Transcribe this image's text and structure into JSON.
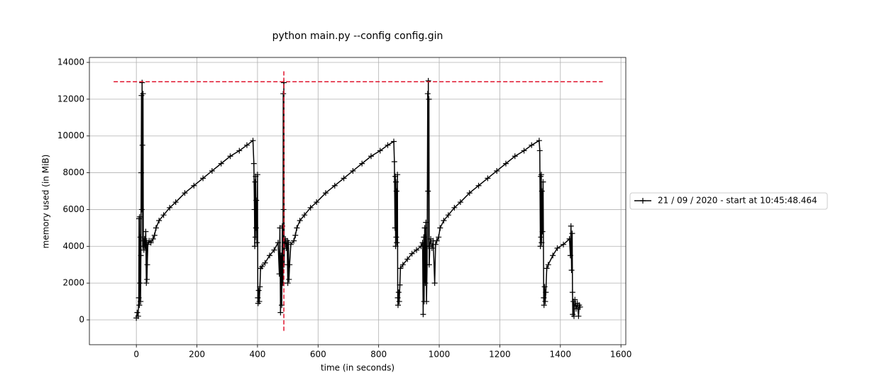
{
  "chart_data": {
    "type": "line",
    "title": "python main.py --config config.gin",
    "xlabel": "time (in seconds)",
    "ylabel": "memory used (in MiB)",
    "xlim": [
      -155,
      1616
    ],
    "ylim": [
      -1350,
      14270
    ],
    "xticks": [
      0,
      200,
      400,
      600,
      800,
      1000,
      1200,
      1400,
      1600
    ],
    "yticks": [
      0,
      2000,
      4000,
      6000,
      8000,
      10000,
      12000,
      14000
    ],
    "grid": true,
    "legend_position": "right",
    "x": [
      0,
      3,
      6,
      8,
      9,
      10,
      11,
      12,
      13,
      14,
      15,
      16,
      17,
      18,
      19,
      20,
      21,
      22,
      23,
      25,
      27,
      29,
      31,
      33,
      34,
      35,
      36,
      38,
      42,
      48,
      55,
      60,
      65,
      75,
      90,
      110,
      130,
      160,
      190,
      220,
      250,
      280,
      310,
      340,
      365,
      385,
      388,
      390,
      391,
      392,
      393,
      394,
      395,
      396,
      398,
      400,
      401,
      402,
      404,
      406,
      408,
      410,
      415,
      425,
      440,
      455,
      468,
      472,
      474,
      476,
      478,
      480,
      482,
      484,
      485,
      486,
      487,
      488,
      489,
      492,
      495,
      498,
      500,
      502,
      504,
      506,
      510,
      520,
      525,
      530,
      540,
      555,
      575,
      595,
      625,
      655,
      685,
      715,
      745,
      775,
      805,
      830,
      850,
      852,
      854,
      855,
      856,
      857,
      858,
      859,
      860,
      862,
      863,
      864,
      866,
      868,
      870,
      872,
      880,
      895,
      910,
      925,
      940,
      945,
      947,
      949,
      950,
      952,
      954,
      956,
      958,
      960,
      962,
      963,
      964,
      965,
      966,
      967,
      969,
      972,
      976,
      980,
      985,
      988,
      992,
      998,
      1003,
      1015,
      1030,
      1050,
      1070,
      1100,
      1130,
      1160,
      1190,
      1220,
      1250,
      1280,
      1305,
      1330,
      1332,
      1334,
      1335,
      1336,
      1337,
      1338,
      1339,
      1341,
      1343,
      1345,
      1346,
      1348,
      1350,
      1352,
      1355,
      1360,
      1375,
      1390,
      1410,
      1430,
      1433,
      1435,
      1437,
      1439,
      1440,
      1441,
      1443,
      1445,
      1448,
      1452,
      1456,
      1460,
      1462,
      1465
    ],
    "series": [
      {
        "name": "21 / 09 / 2020 - start at 10:45:48.464",
        "color": "#000000",
        "values": [
          100,
          400,
          200,
          1200,
          5500,
          800,
          5600,
          2000,
          4500,
          1000,
          3500,
          8000,
          12200,
          6000,
          12900,
          9500,
          4000,
          12300,
          4300,
          3800,
          4400,
          4000,
          4800,
          2000,
          4200,
          2200,
          3000,
          4100,
          4300,
          4200,
          4400,
          4600,
          5000,
          5400,
          5700,
          6100,
          6400,
          6900,
          7300,
          7700,
          8100,
          8500,
          8900,
          9200,
          9500,
          9750,
          8500,
          6000,
          4000,
          7500,
          4500,
          7800,
          5000,
          6500,
          4200,
          7900,
          1200,
          900,
          1600,
          1000,
          1800,
          2800,
          2900,
          3100,
          3500,
          3800,
          4200,
          2500,
          5000,
          400,
          3500,
          800,
          5100,
          2000,
          12300,
          6000,
          12900,
          3000,
          4000,
          4400,
          3900,
          4300,
          2000,
          4200,
          2200,
          3000,
          4100,
          4300,
          4600,
          5000,
          5400,
          5700,
          6100,
          6400,
          6900,
          7300,
          7700,
          8100,
          8500,
          8900,
          9200,
          9500,
          9700,
          8600,
          5000,
          7800,
          4000,
          7500,
          4500,
          7000,
          4200,
          7900,
          1200,
          800,
          1500,
          1000,
          1900,
          2800,
          3000,
          3300,
          3600,
          3800,
          4000,
          4200,
          300,
          4500,
          1000,
          5000,
          2000,
          5300,
          1000,
          3000,
          12300,
          7000,
          13000,
          4000,
          12000,
          3000,
          4000,
          4400,
          3900,
          4300,
          2000,
          4100,
          4300,
          4500,
          5000,
          5400,
          5700,
          6100,
          6400,
          6900,
          7300,
          7700,
          8100,
          8500,
          8900,
          9200,
          9500,
          9750,
          9200,
          4000,
          7800,
          4500,
          7900,
          4200,
          7000,
          4800,
          7500,
          1200,
          800,
          1800,
          1000,
          1500,
          2800,
          3000,
          3500,
          3900,
          4100,
          4400,
          3500,
          5100,
          2700,
          4700,
          1500,
          300,
          1000,
          200,
          1100,
          600,
          900,
          200,
          800,
          700
        ]
      }
    ],
    "hline": {
      "y": 12950,
      "xmin": -75,
      "xmax": 1540,
      "color": "#e0152e"
    },
    "vline": {
      "x": 487,
      "ymin": -600,
      "ymax": 13600,
      "color": "#e0152e"
    }
  }
}
